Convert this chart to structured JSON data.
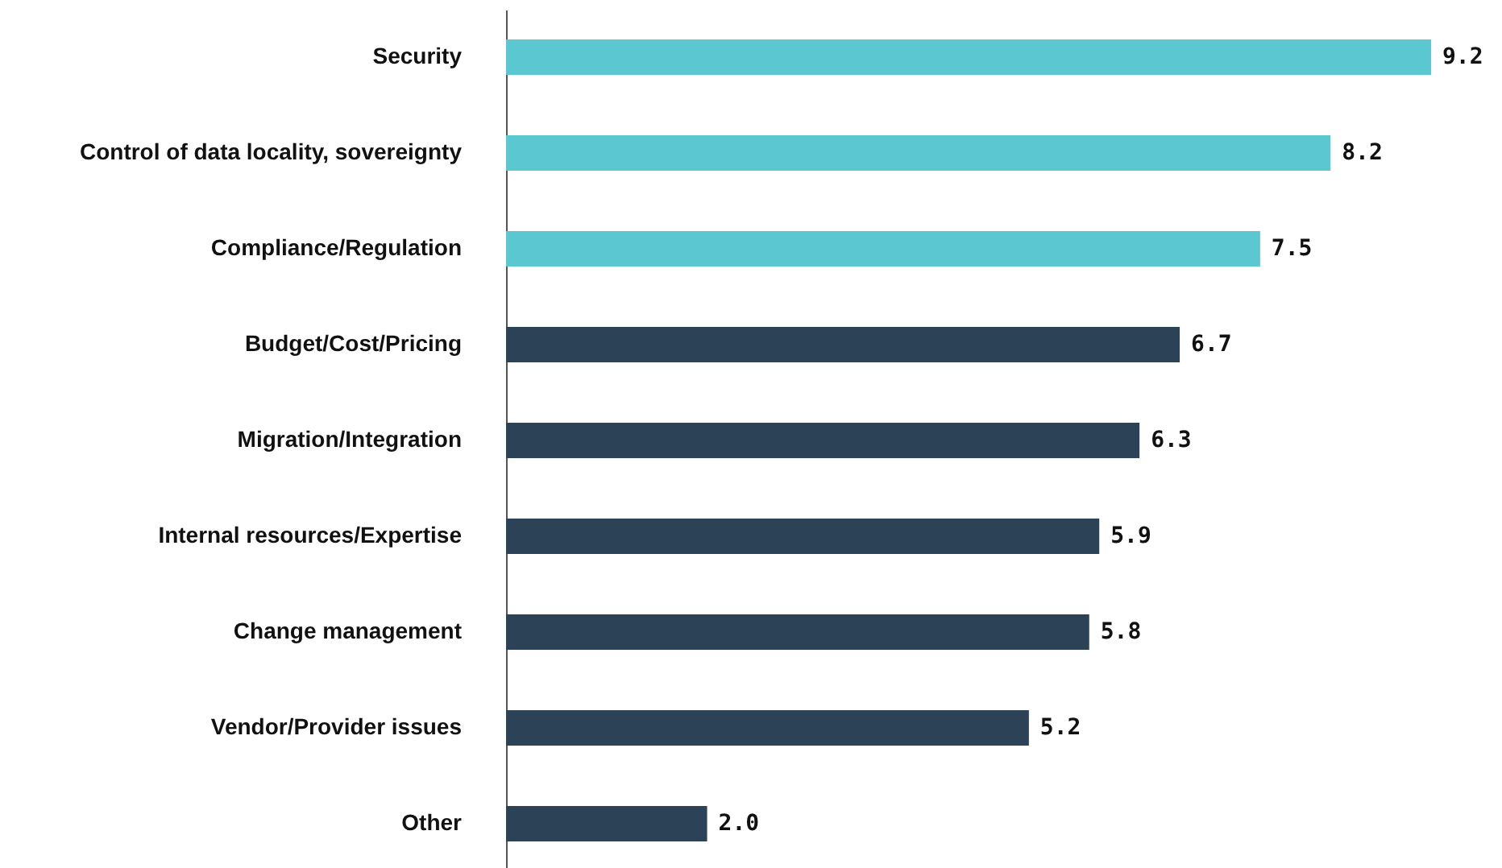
{
  "chart_data": {
    "type": "bar",
    "orientation": "horizontal",
    "categories": [
      "Security",
      "Control of data locality, sovereignty",
      "Compliance/Regulation",
      "Budget/Cost/Pricing",
      "Migration/Integration",
      "Internal resources/Expertise",
      "Change management",
      "Vendor/Provider issues",
      "Other"
    ],
    "values": [
      9.2,
      8.2,
      7.5,
      6.7,
      6.3,
      5.9,
      5.8,
      5.2,
      2.0
    ],
    "value_labels": [
      "9.2",
      "8.2",
      "7.5",
      "6.7",
      "6.3",
      "5.9",
      "5.8",
      "5.2",
      "2.0"
    ],
    "colors": [
      "#5bc8d1",
      "#5bc8d1",
      "#5bc8d1",
      "#2c4257",
      "#2c4257",
      "#2c4257",
      "#2c4257",
      "#2c4257",
      "#2c4257"
    ]
  }
}
